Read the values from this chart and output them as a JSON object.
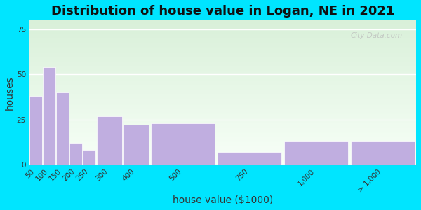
{
  "title": "Distribution of house value in Logan, NE in 2021",
  "xlabel": "house value ($1000)",
  "ylabel": "houses",
  "bar_labels": [
    "50",
    "100",
    "150",
    "200",
    "250",
    "300",
    "400",
    "500",
    "750",
    "1,000",
    "> 1,000"
  ],
  "bar_values": [
    38,
    54,
    40,
    12,
    8,
    27,
    22,
    23,
    7,
    13,
    13
  ],
  "bar_edges": [
    50,
    100,
    150,
    200,
    250,
    300,
    400,
    500,
    750,
    1000,
    1250,
    1500
  ],
  "bar_color": "#c0aee0",
  "ylim": [
    0,
    80
  ],
  "yticks": [
    0,
    25,
    50,
    75
  ],
  "bg_outer": "#00e5ff",
  "bg_plot_top_color": "#d8f0d8",
  "bg_plot_bottom_color": "#f8fff8",
  "title_fontsize": 13,
  "axis_label_fontsize": 10,
  "tick_fontsize": 7.5,
  "watermark": "City-Data.com"
}
